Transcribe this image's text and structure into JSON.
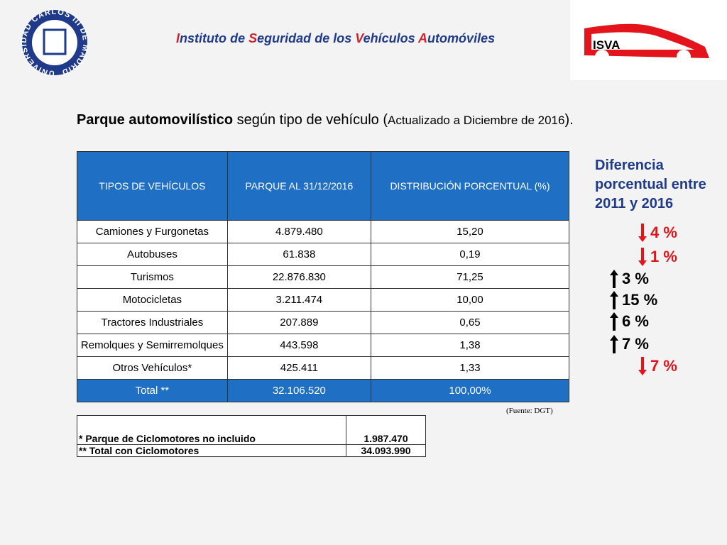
{
  "header": {
    "title": "Instituto de Seguridad de los Vehículos Automóviles",
    "seal": "UNIVERSIDAD CARLOS III DE MADRID",
    "logo": "ISVA"
  },
  "subtitle": [
    "Parque automovilístico",
    " según tipo de vehículo (",
    "Actualizado a Diciembre de 2016",
    ")."
  ],
  "table": {
    "headers": [
      "TIPOS DE VEHÍCULOS",
      "PARQUE AL 31/12/2016",
      "DISTRIBUCIÓN PORCENTUAL (%)"
    ],
    "rows": [
      [
        "Camiones y Furgonetas",
        "4.879.480",
        "15,20"
      ],
      [
        "Autobuses",
        "61.838",
        "0,19"
      ],
      [
        "Turismos",
        "22.876.830",
        "71,25"
      ],
      [
        "Motocicletas",
        "3.211.474",
        "10,00"
      ],
      [
        "Tractores Industriales",
        "207.889",
        "0,65"
      ],
      [
        "Remolques y Semirremolques",
        "443.598",
        "1,38"
      ],
      [
        "Otros Vehículos*",
        "425.411",
        "1,33"
      ]
    ],
    "total": [
      "Total **",
      "32.106.520",
      "100,00%"
    ],
    "source": "(Fuente: DGT)"
  },
  "footnotes": [
    [
      "* Parque de Ciclomotores no incluido",
      "1.987.470"
    ],
    [
      "** Total con Ciclomotores",
      "34.093.990"
    ]
  ],
  "difference": {
    "title": "Diferencia porcentual entre 2011 y 2016",
    "items": [
      {
        "direction": "down",
        "label": "4 %"
      },
      {
        "direction": "down",
        "label": "1 %"
      },
      {
        "direction": "up",
        "label": "3 %"
      },
      {
        "direction": "up",
        "label": "15 %"
      },
      {
        "direction": "up",
        "label": "6 %"
      },
      {
        "direction": "up",
        "label": "7 %"
      },
      {
        "direction": "down",
        "label": "7 %"
      }
    ]
  }
}
